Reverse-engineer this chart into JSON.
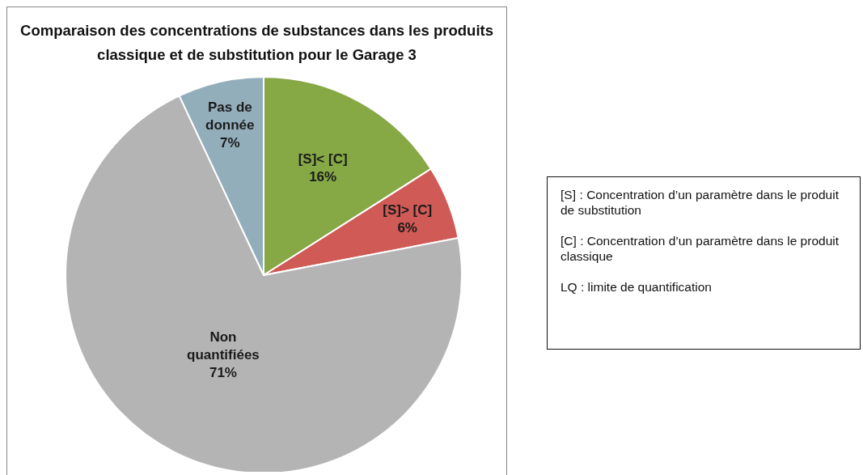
{
  "chart_data": {
    "type": "pie",
    "title": "Comparaison des concentrations de substances dans les produits classique et de substitution pour le Garage 3",
    "categories": [
      "[S]< [C]",
      "[S]> [C]",
      "Non quantifiées",
      "Pas de donnée"
    ],
    "values": [
      16,
      6,
      71,
      7
    ],
    "colors": [
      "#86a845",
      "#d05a55",
      "#b4b4b4",
      "#93aebb"
    ],
    "value_labels": [
      "16%",
      "6%",
      "71%",
      "7%"
    ],
    "annotations": [
      "[S] : Concentration d’un paramètre dans le produit de substitution",
      "[C] : Concentration d’un paramètre dans le produit classique",
      "LQ : limite de quantification"
    ]
  }
}
